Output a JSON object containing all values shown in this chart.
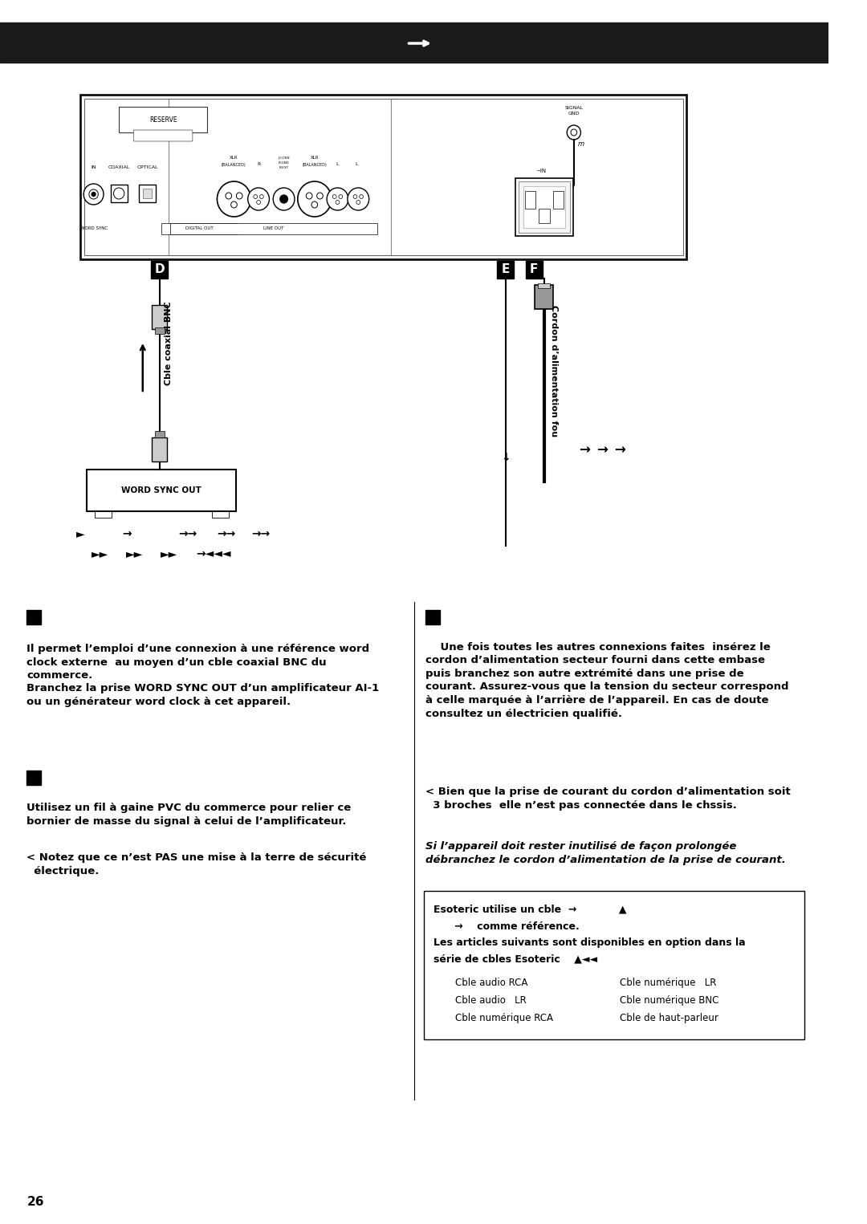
{
  "bg_color": "#ffffff",
  "header_bar_color": "#1a1a1a",
  "page_number": "26",
  "reserve_text": "RESERVE",
  "signal_gnd_text": "SIGNAL\nGND",
  "word_sync_box_text": "WORD SYNC OUT",
  "cable_bnc_text": "Cble coaxial BNC",
  "cordon_text": "Cordon d’alimentation fou",
  "text_d_para": "Il permet l’emploi d’une connexion à une référence word\nclock externe  au moyen d’un cble coaxial BNC du\ncommerce.\nBranchez la prise WORD SYNC OUT d’un amplificateur AI-1\nou un générateur word clock à cet appareil.",
  "text_e_para": "Utilisez un fil à gaine PVC du commerce pour relier ce\nbornier de masse du signal à celui de l’amplificateur.",
  "text_e_note": "< Notez que ce n’est PAS une mise à la terre de sécurité\nélectrique.",
  "text_f_para": "Une fois toutes les autres connexions faites  insérez le\ncordon d’alimentation secteur fourni dans cette embase\npuis branchez son autre extrémité dans une prise de\ncourant. Assurez-vous que la tension du secteur correspond\nà celle marquée à l’arrière de l’appareil. En cas de doute\nconsultez un électricien qualifié.",
  "text_f_note1": "< Bien que la prise de courant du cordon d’alimentation soit\n  3 broches  elle n’est pas connectée dans le chssis.",
  "text_f_note2": "Si l’appareil doit rester inutilisé de façon prolongée\ndébranchez le cordon d’alimentation de la prise de courant.",
  "box_line1": "Esoteric utilise un cble  →            ▲",
  "box_line2": "      →    comme référence.",
  "box_line3": "Les articles suivants sont disponibles en option dans la",
  "box_line4": "série de cbles Esoteric    ▲◄◄",
  "box_items_left": [
    "Cble audio RCA",
    "Cble audio   LR",
    "Cble numérique RCA"
  ],
  "box_items_right": [
    "Cble numérique   LR",
    "Cble numérique BNC",
    "Cble de haut-parleur"
  ],
  "row1_arrows": [
    "►",
    "→",
    "→→",
    "→→",
    "→→"
  ],
  "row2_arrows": [
    "►►",
    "►►",
    "►►",
    "→◄◄◄"
  ]
}
